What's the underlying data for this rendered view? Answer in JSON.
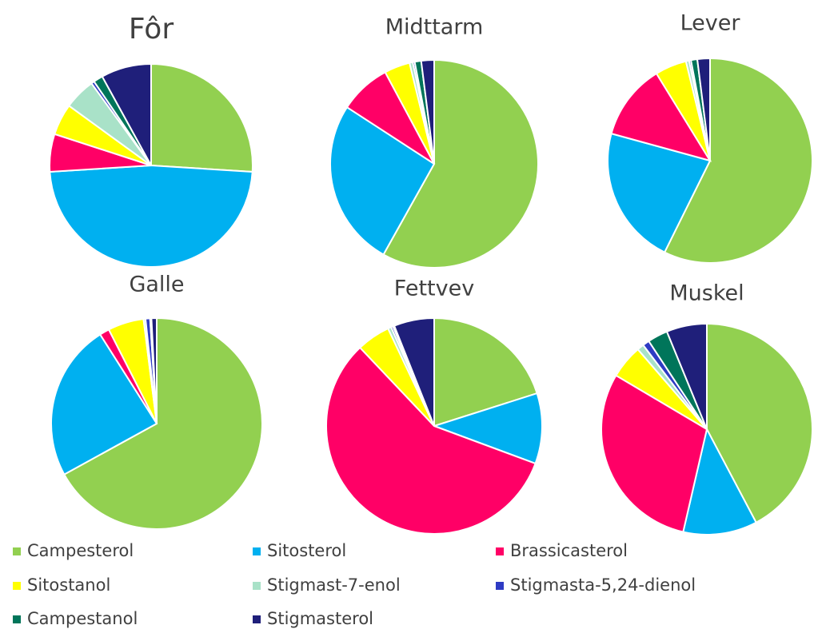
{
  "chart_data": [
    {
      "type": "pie",
      "title": "Fôr",
      "values": [
        26,
        48,
        6,
        5,
        5,
        0.5,
        1.5,
        8
      ]
    },
    {
      "type": "pie",
      "title": "Midttarm",
      "values": [
        58,
        26,
        8,
        4,
        0.5,
        0.3,
        1,
        2
      ]
    },
    {
      "type": "pie",
      "title": "Lever",
      "values": [
        57.5,
        22,
        12,
        5,
        0.5,
        0.3,
        1,
        2
      ]
    },
    {
      "type": "pie",
      "title": "Galle",
      "values": [
        67,
        24,
        1.5,
        5.5,
        0.3,
        0.7,
        0.2,
        0.8
      ]
    },
    {
      "type": "pie",
      "title": "Fettvev",
      "values": [
        20,
        10.5,
        57,
        5,
        0.5,
        0.3,
        0.2,
        6
      ]
    },
    {
      "type": "pie",
      "title": "Muskel",
      "values": [
        41,
        11,
        29,
        5,
        1,
        1,
        3,
        6
      ]
    }
  ],
  "legend": {
    "position": "bottom",
    "labels": [
      "Campesterol",
      "Sitosterol",
      "Brassicasterol",
      "Sitostanol",
      "Stigmast-7-enol",
      "Stigmasta-5,24-dienol",
      "Campestanol",
      "Stigmasterol"
    ],
    "colors": [
      "#92d050",
      "#00b0f0",
      "#ff0066",
      "#ffff00",
      "#a9e2c8",
      "#2e3bc4",
      "#00755a",
      "#1f1f7a"
    ]
  }
}
